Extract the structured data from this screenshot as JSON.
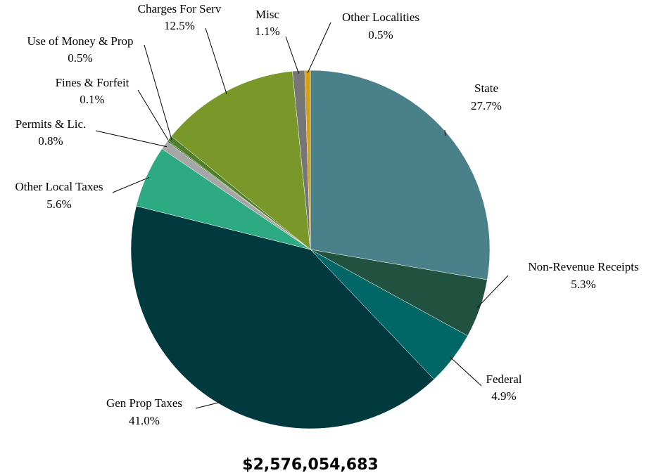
{
  "chart_data": {
    "type": "pie",
    "categories": [
      "State",
      "Non-Revenue Receipts",
      "Federal",
      "Gen Prop Taxes",
      "Other Local Taxes",
      "Permits & Lic.",
      "Fines & Forfeit",
      "Use of Money & Prop",
      "Charges For Serv",
      "Misc",
      "Other Localities"
    ],
    "values": [
      27.7,
      5.3,
      4.9,
      41.0,
      5.6,
      0.8,
      0.1,
      0.5,
      12.5,
      1.1,
      0.5
    ],
    "value_labels": [
      "27.7%",
      "5.3%",
      "4.9%",
      "41.0%",
      "5.6%",
      "0.8%",
      "0.1%",
      "0.5%",
      "12.5%",
      "1.1%",
      "0.5%"
    ],
    "colors": [
      "#4a8089",
      "#21523f",
      "#006666",
      "#003a3f",
      "#2eaa82",
      "#a6a6a6",
      "#3a6b1f",
      "#4f7f2a",
      "#7a982a",
      "#767676",
      "#d4a017"
    ],
    "annotation": "$2,576,054,683"
  }
}
